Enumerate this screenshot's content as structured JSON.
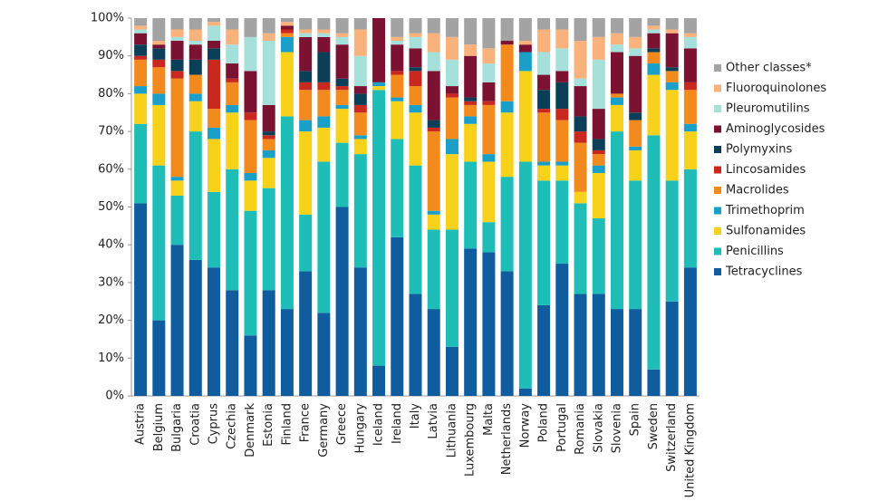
{
  "chart_data": {
    "type": "stacked-bar",
    "categories": [
      "Austria",
      "Belgium",
      "Bulgaria",
      "Croatia",
      "Cyprus",
      "Czechia",
      "Denmark",
      "Estonia",
      "Finland",
      "France",
      "Germany",
      "Greece",
      "Hungary",
      "Iceland",
      "Ireland",
      "Italy",
      "Latvia",
      "Lithuania",
      "Luxembourg",
      "Malta",
      "Netherlands",
      "Norway",
      "Poland",
      "Portugal",
      "Romania",
      "Slovakia",
      "Slovenia",
      "Spain",
      "Sweden",
      "Switzerland",
      "United Kingdom"
    ],
    "series": [
      {
        "name": "Tetracyclines",
        "color": "#0f5c9e",
        "values": [
          51,
          20,
          40,
          36,
          34,
          28,
          16,
          28,
          23,
          33,
          22,
          50,
          34,
          8,
          42,
          27,
          23,
          13,
          39,
          38,
          33,
          2,
          24,
          35,
          27,
          27,
          23,
          23,
          7,
          25,
          34
        ]
      },
      {
        "name": "Penicillins",
        "color": "#1fbdb8",
        "values": [
          21,
          41,
          13,
          34,
          20,
          32,
          33,
          27,
          51,
          15,
          40,
          17,
          30,
          73,
          26,
          34,
          21,
          31,
          23,
          8,
          25,
          60,
          33,
          22,
          24,
          20,
          47,
          34,
          62,
          32,
          26
        ]
      },
      {
        "name": "Sulfonamides",
        "color": "#f8d21a",
        "values": [
          8,
          16,
          4,
          8,
          14,
          15,
          8,
          8,
          17,
          22,
          9,
          9,
          4,
          1,
          10,
          14,
          4,
          20,
          10,
          16,
          17,
          24,
          4,
          4,
          3,
          12,
          7,
          8,
          16,
          24,
          10
        ]
      },
      {
        "name": "Trimethoprim",
        "color": "#1aa0c8",
        "values": [
          2,
          3,
          1,
          2,
          3,
          2,
          2,
          2,
          4,
          3,
          3,
          1,
          1,
          1,
          1,
          2,
          1,
          4,
          2,
          2,
          3,
          5,
          1,
          1,
          0,
          2,
          2,
          1,
          3,
          2,
          2
        ]
      },
      {
        "name": "Macrolides",
        "color": "#f28a1e",
        "values": [
          7,
          7,
          26,
          5,
          5,
          6,
          14,
          3,
          1,
          8,
          7,
          4,
          6,
          0,
          6,
          5,
          21,
          11,
          3,
          13,
          15,
          0,
          13,
          11,
          13,
          3,
          1,
          7,
          3,
          3,
          9
        ]
      },
      {
        "name": "Lincosamides",
        "color": "#c9281e",
        "values": [
          1,
          2,
          2,
          0,
          13,
          1,
          2,
          1,
          1,
          2,
          2,
          1,
          2,
          0,
          1,
          4,
          1,
          1,
          1,
          1,
          0,
          0,
          1,
          3,
          3,
          1,
          0,
          0,
          0,
          0,
          2
        ]
      },
      {
        "name": "Polymyxins",
        "color": "#0b3f58",
        "values": [
          3,
          3,
          3,
          4,
          3,
          0,
          0,
          1,
          0,
          3,
          8,
          2,
          3,
          0,
          0,
          1,
          2,
          0,
          1,
          0,
          0,
          0,
          5,
          7,
          4,
          3,
          0,
          2,
          1,
          1,
          0
        ]
      },
      {
        "name": "Aminoglycosides",
        "color": "#7b1232",
        "values": [
          3,
          1,
          5,
          4,
          2,
          4,
          11,
          7,
          1,
          9,
          4,
          9,
          2,
          17,
          7,
          5,
          13,
          2,
          11,
          5,
          1,
          2,
          4,
          3,
          8,
          8,
          11,
          15,
          4,
          9,
          9
        ]
      },
      {
        "name": "Pleuromutilins",
        "color": "#a5e0da",
        "values": [
          1,
          0,
          1,
          1,
          4,
          5,
          9,
          17,
          0,
          1,
          1,
          2,
          8,
          0,
          1,
          3,
          5,
          7,
          0,
          5,
          0,
          0,
          6,
          6,
          2,
          13,
          2,
          2,
          1,
          0,
          3
        ]
      },
      {
        "name": "Fluoroquinolones",
        "color": "#f9b27c",
        "values": [
          1,
          1,
          2,
          3,
          1,
          4,
          0,
          2,
          1,
          1,
          1,
          1,
          7,
          0,
          1,
          1,
          5,
          6,
          3,
          4,
          0,
          1,
          6,
          5,
          10,
          6,
          3,
          3,
          1,
          1,
          1
        ]
      },
      {
        "name": "Other classes*",
        "color": "#a3a3a3",
        "values": [
          2,
          6,
          3,
          3,
          1,
          3,
          5,
          4,
          1,
          3,
          3,
          4,
          3,
          0,
          5,
          4,
          4,
          5,
          7,
          8,
          6,
          6,
          3,
          3,
          6,
          5,
          4,
          5,
          2,
          3,
          4
        ]
      }
    ],
    "ylim": [
      0,
      100
    ],
    "yticks": [
      {
        "value": 0,
        "label": "0%"
      },
      {
        "value": 10,
        "label": "10%"
      },
      {
        "value": 20,
        "label": "20%"
      },
      {
        "value": 30,
        "label": "30%"
      },
      {
        "value": 40,
        "label": "40%"
      },
      {
        "value": 50,
        "label": "50%"
      },
      {
        "value": 60,
        "label": "60%"
      },
      {
        "value": 70,
        "label": "70%"
      },
      {
        "value": 80,
        "label": "80%"
      },
      {
        "value": 90,
        "label": "90%"
      },
      {
        "value": 100,
        "label": "100%"
      }
    ],
    "grid": false,
    "legend": "right"
  }
}
